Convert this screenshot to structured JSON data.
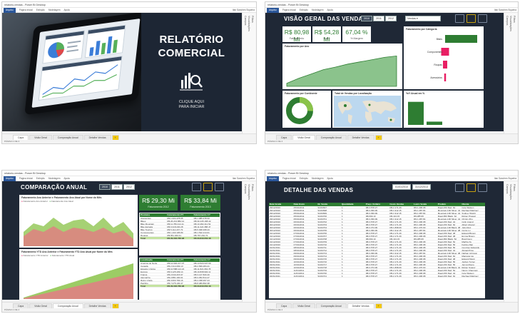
{
  "app": {
    "title_text": "relatorio-vendas - Power BI Desktop",
    "ribbon_tabs": [
      "Arquivo",
      "Página Inicial",
      "Exibição",
      "Modelagem",
      "Ajuda"
    ],
    "user": "Itan Sanches Siqueira",
    "right_panel": [
      "Campos",
      "Visualizações",
      "Filtros"
    ],
    "status_text": "PÁGINA 1 DE 4"
  },
  "page_tabs": [
    "Capa",
    "Visão Geral",
    "Comparação Anual",
    "Detalhe Vendas"
  ],
  "cover": {
    "title_line1": "RELATÓRIO",
    "title_line2": "COMERCIAL",
    "click_line1": "CLIQUE AQUI",
    "click_line2": "PARA INICIAR"
  },
  "overview": {
    "title": "VISÃO GERAL DAS VENDAS",
    "years": [
      "2010",
      "2011",
      "2012"
    ],
    "date_slicer": "Vendas ▾",
    "kpis": [
      {
        "value": "R$ 80,98 Mi",
        "label": "Faturamento"
      },
      {
        "value": "R$ 54,28 Mi",
        "label": "Lucro"
      },
      {
        "value": "67,04 %",
        "label": "% Margem"
      }
    ],
    "panel_year": "Faturamento por Ano",
    "panel_category": "Faturamento por Categoria",
    "panel_continent": "Faturamento por Continente",
    "panel_map": "Total de Vendas por Localização",
    "panel_yoy": "YoY Anual em %",
    "categories": [
      "Bikes",
      "Componentes",
      "Roupas",
      "Acessórios"
    ],
    "category_values": [
      0.9,
      0.22,
      0.12,
      0.05
    ],
    "yoy_values": [
      0.85,
      0.12
    ],
    "year_points": [
      0.08,
      0.22,
      0.33,
      0.45,
      0.52,
      0.6,
      0.66,
      0.72,
      0.78,
      0.82
    ]
  },
  "comparison": {
    "title": "COMPARAÇÃO ANUAL",
    "years": [
      "2010",
      "2011",
      "2012"
    ],
    "chart1_title": "Faturamento Ano Anterior e Faturamento Ano Atual por Nome do Mês",
    "chart2_title": "Faturamento YTD Ano Anterior e Faturamento YTD Ano Atual por Nome do Mês",
    "legend1": [
      "Faturamento Ano Anterior",
      "Faturamento Ano Atual"
    ],
    "legend2": [
      "Faturamento YTD Anterior",
      "Faturamento YTD Atual"
    ],
    "kpis": [
      {
        "value": "R$ 29,30 Mi",
        "label": "Faturamento 2012"
      },
      {
        "value": "R$ 33,84 Mi",
        "label": "Faturamento 2013"
      }
    ],
    "table1_headers": [
      "Produtos",
      "Faturamento PY",
      "Faturamento CY"
    ],
    "table1_rows": [
      [
        "Acessórios",
        "R$ 1.004.478,65",
        "R$ 1.085.378,33"
      ],
      [
        "Bikes",
        "R$ 26.213.882,12",
        "R$ 30.445.168,42"
      ],
      [
        "Bike Mountain",
        "R$ 11.783.414,11",
        "R$ 13.482.411,52"
      ],
      [
        "Bike Estrada",
        "R$ 9.318.230,28",
        "R$ 11.024.388,47"
      ],
      [
        "Bike Touring",
        "R$ 5.112.237,73",
        "R$ 5.938.368,43"
      ],
      [
        "Componentes",
        "R$ 1.433.105,80",
        "R$ 1.542.214,01"
      ],
      [
        "Roupas",
        "R$ 651.320,41",
        "R$ 767.291,72"
      ]
    ],
    "table1_total": [
      "Total",
      "R$ 29.302.786,98",
      "R$ 33.840.052,48"
    ],
    "table2_headers": [
      "Localização",
      "Faturamento PY",
      "Faturamento CY"
    ],
    "table2_rows": [
      [
        "América do Norte",
        "R$ 12.902.217,37",
        "R$ 14.520.347,99"
      ],
      [
        "Canadá",
        "R$ 2.314.093,13",
        "R$ 2.699.284,21"
      ],
      [
        "Estados Unidos",
        "R$ 10.588.124,24",
        "R$ 11.821.063,78"
      ],
      [
        "Europa",
        "R$ 9.125.439,14",
        "R$ 10.838.902,11"
      ],
      [
        "França",
        "R$ 2.640.215,97",
        "R$ 3.147.820,40"
      ],
      [
        "Alemanha",
        "R$ 2.881.430,01",
        "R$ 3.352.814,47"
      ],
      [
        "Reino Unido",
        "R$ 3.603.793,16",
        "R$ 4.338.267,24"
      ],
      [
        "Pacífico",
        "R$ 7.275.130,47",
        "R$ 8.480.802,38"
      ]
    ],
    "table2_total": [
      "Total",
      "R$ 29.302.786,98",
      "R$ 33.840.052,48"
    ]
  },
  "detail": {
    "title": "DETALHE DAS VENDAS",
    "date_from": "01/01/2010",
    "date_to": "31/12/2013",
    "headers": [
      "Data Venda",
      "Data Envio",
      "Nr. Venda",
      "Quantidade",
      "Preço Unitário",
      "Custo Vendas",
      "Lucro Venda",
      "Produto",
      "Cliente"
    ],
    "rows": [
      [
        "29/12/2010",
        "05/01/2011",
        "SO43697",
        "1",
        "R$ 3.578,27",
        "R$ 2.171,29",
        "R$ 1.406,98",
        "Road-150 Red, 62",
        "Cole Watson"
      ],
      [
        "29/12/2010",
        "05/01/2011",
        "SO43698",
        "1",
        "R$ 3.399,99",
        "R$ 1.912,15",
        "R$ 1.487,84",
        "Mountain-100 Silver, 44",
        "Rachael Martinez"
      ],
      [
        "29/12/2010",
        "05/01/2011",
        "SO43699",
        "1",
        "R$ 3.399,99",
        "R$ 1.912,15",
        "R$ 1.487,84",
        "Mountain-100 Silver, 44",
        "Sydney Wright"
      ],
      [
        "29/12/2010",
        "05/01/2011",
        "SO43700",
        "1",
        "R$ 699,10",
        "R$ 413,15",
        "R$ 285,95",
        "Road-650 Black, 62",
        "Ruben Prasad"
      ],
      [
        "29/12/2010",
        "05/01/2011",
        "SO43701",
        "1",
        "R$ 3.399,99",
        "R$ 1.912,15",
        "R$ 1.487,84",
        "Mountain-100 Silver, 44",
        "Christy Zhu"
      ],
      [
        "30/12/2010",
        "06/01/2011",
        "SO43702",
        "1",
        "R$ 3.578,27",
        "R$ 2.171,29",
        "R$ 1.406,98",
        "Road-150 Red, 44",
        "Colin Anand"
      ],
      [
        "30/12/2010",
        "06/01/2011",
        "SO43703",
        "1",
        "R$ 3.578,27",
        "R$ 2.171,29",
        "R$ 1.406,98",
        "Road-150 Red, 62",
        "Albert Alvarez"
      ],
      [
        "30/12/2010",
        "06/01/2011",
        "SO43704",
        "1",
        "R$ 3.374,99",
        "R$ 1.898,09",
        "R$ 1.476,90",
        "Mountain-100 Black, 48",
        "Julio Ruiz"
      ],
      [
        "30/12/2010",
        "06/01/2011",
        "SO43705",
        "1",
        "R$ 3.399,99",
        "R$ 1.912,15",
        "R$ 1.487,84",
        "Mountain-100 Silver, 38",
        "Curtis Lu"
      ],
      [
        "31/12/2010",
        "07/01/2011",
        "SO43706",
        "1",
        "R$ 3.578,27",
        "R$ 2.171,29",
        "R$ 1.406,98",
        "Road-150 Red, 48",
        "Edward Brown"
      ],
      [
        "31/12/2010",
        "07/01/2011",
        "SO43707",
        "1",
        "R$ 3.578,27",
        "R$ 2.171,29",
        "R$ 1.406,98",
        "Road-150 Red, 48",
        "Emma Brown"
      ],
      [
        "31/12/2010",
        "07/01/2011",
        "SO43708",
        "1",
        "R$ 699,10",
        "R$ 413,15",
        "R$ 285,95",
        "Road-650 Black, 52",
        "Brad Deng"
      ],
      [
        "31/12/2010",
        "07/01/2011",
        "SO43709",
        "1",
        "R$ 3.578,27",
        "R$ 2.171,29",
        "R$ 1.406,98",
        "Road-150 Red, 52",
        "Martha Xu"
      ],
      [
        "31/12/2010",
        "07/01/2011",
        "SO43710",
        "1",
        "R$ 3.578,27",
        "R$ 2.171,29",
        "R$ 1.406,98",
        "Road-150 Red, 56",
        "Katrina Raji"
      ],
      [
        "01/01/2011",
        "08/01/2011",
        "SO43711",
        "1",
        "R$ 3.578,27",
        "R$ 2.171,29",
        "R$ 1.406,98",
        "Road-150 Red, 56",
        "Courtney Edwards"
      ],
      [
        "01/01/2011",
        "08/01/2011",
        "SO43712",
        "1",
        "R$ 3.578,27",
        "R$ 2.171,29",
        "R$ 1.406,98",
        "Road-150 Red, 44",
        "Abigail Price"
      ],
      [
        "02/01/2011",
        "09/01/2011",
        "SO43713",
        "1",
        "R$ 3.399,99",
        "R$ 1.912,15",
        "R$ 1.487,84",
        "Mountain-100 Silver, 38",
        "Nathan Johnson"
      ],
      [
        "02/01/2011",
        "09/01/2011",
        "SO43714",
        "1",
        "R$ 3.578,27",
        "R$ 2.171,29",
        "R$ 1.406,98",
        "Road-150 Red, 62",
        "Margaret He"
      ],
      [
        "02/01/2011",
        "09/01/2011",
        "SO43715",
        "1",
        "R$ 3.578,27",
        "R$ 2.171,29",
        "R$ 1.406,98",
        "Road-150 Red, 48",
        "Edward Ward"
      ],
      [
        "03/01/2011",
        "10/01/2011",
        "SO43716",
        "1",
        "R$ 3.578,27",
        "R$ 2.171,29",
        "R$ 1.406,98",
        "Road-150 Red, 56",
        "Jordan Turner"
      ],
      [
        "03/01/2011",
        "10/01/2011",
        "SO43717",
        "1",
        "R$ 3.578,27",
        "R$ 2.171,29",
        "R$ 1.406,98",
        "Road-150 Red, 56",
        "Jenna Moore"
      ],
      [
        "03/01/2011",
        "10/01/2011",
        "SO43718",
        "1",
        "R$ 3.374,99",
        "R$ 1.898,09",
        "R$ 1.476,90",
        "Mountain-100 Black, 44",
        "Ruben Suarez"
      ],
      [
        "04/01/2011",
        "11/01/2011",
        "SO43719",
        "1",
        "R$ 3.578,27",
        "R$ 2.171,29",
        "R$ 1.406,98",
        "Road-150 Red, 52",
        "Nancy Chapman"
      ],
      [
        "04/01/2011",
        "11/01/2011",
        "SO43720",
        "1",
        "R$ 3.578,27",
        "R$ 2.171,29",
        "R$ 1.406,98",
        "Road-150 Red, 44",
        "Cole Watson"
      ],
      [
        "04/01/2011",
        "11/01/2011",
        "SO43721",
        "1",
        "R$ 3.578,27",
        "R$ 2.171,29",
        "R$ 1.406,98",
        "Road-150 Red, 62",
        "Rachael Martinez"
      ]
    ]
  },
  "colors": {
    "dark": "#1f2836",
    "green": "#2e7d32",
    "light_green": "#8bc34a",
    "red": "#e91e63",
    "accent": "#f2c811"
  }
}
